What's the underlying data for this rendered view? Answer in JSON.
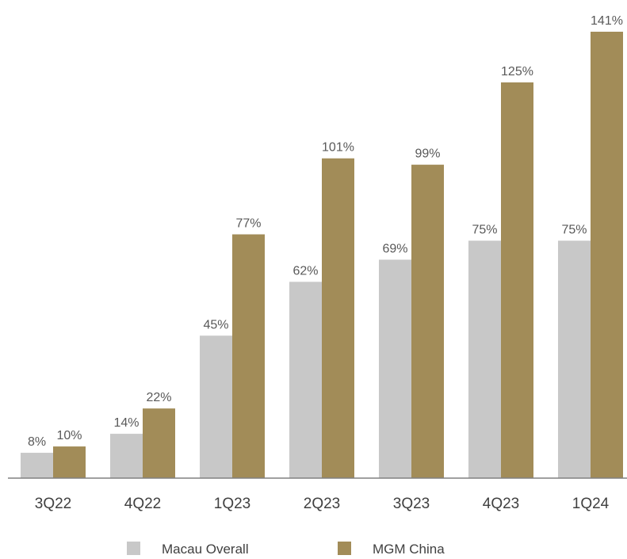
{
  "chart_data": {
    "type": "bar",
    "title": "",
    "xlabel": "",
    "ylabel": "",
    "categories": [
      "3Q22",
      "4Q22",
      "1Q23",
      "2Q23",
      "3Q23",
      "4Q23",
      "1Q24"
    ],
    "series": [
      {
        "name": "Macau Overall",
        "values": [
          8,
          14,
          45,
          62,
          69,
          75,
          75
        ],
        "labels": [
          "8%",
          "14%",
          "45%",
          "62%",
          "69%",
          "75%",
          "75%"
        ],
        "color": "#c8c8c8"
      },
      {
        "name": "MGM China",
        "values": [
          10,
          22,
          77,
          101,
          99,
          125,
          141
        ],
        "labels": [
          "10%",
          "22%",
          "77%",
          "101%",
          "99%",
          "125%",
          "141%"
        ],
        "color": "#a28c58"
      }
    ],
    "ylim": [
      0,
      145
    ],
    "grid": false,
    "legend": "bottom-center",
    "axis_color": "#808080"
  }
}
